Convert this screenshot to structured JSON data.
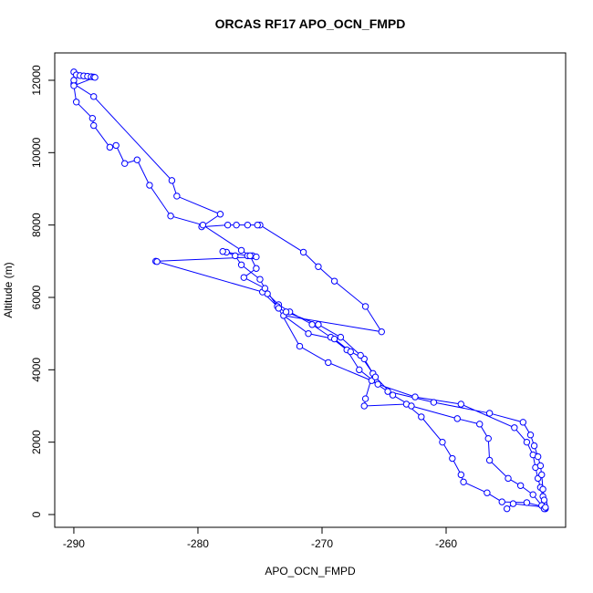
{
  "chart_data": {
    "type": "line",
    "title": "ORCAS RF17 APO_OCN_FMPD",
    "x_label": "APO_OCN_FMPD",
    "y_label": "Altitude (m)",
    "xlim": [
      -291.54,
      -250.37
    ],
    "ylim": [
      -353,
      12756
    ],
    "xticks": [
      -290,
      -280,
      -270,
      -260
    ],
    "yticks": [
      0,
      2000,
      4000,
      6000,
      8000,
      10000,
      12000
    ],
    "grid": false,
    "x": [
      -252.0,
      -252.1,
      -252.2,
      -252.4,
      -252.6,
      -252.8,
      -253.0,
      -253.5,
      -254.5,
      -258.8,
      -262.5,
      -265.5,
      -267.0,
      -268.0,
      -269.3,
      -270.8,
      -272.6,
      -273.5,
      -274.4,
      -275.0,
      -276.5,
      -277.0,
      -277.7,
      -278.0,
      -276.0,
      -275.6,
      -275.3,
      -283.4,
      -283.3,
      -274.8,
      -273.6,
      -271.8,
      -269.5,
      -266.0,
      -264.7,
      -261.0,
      -256.5,
      -253.8,
      -253.2,
      -252.9,
      -252.6,
      -252.4,
      -252.3,
      -252.2,
      -252.1,
      -252.0,
      -253.5,
      -255.5,
      -256.7,
      -258.6,
      -258.8,
      -259.5,
      -260.3,
      -262.0,
      -263.2,
      -266.6,
      -266.5,
      -265.9,
      -266.6,
      -267.7,
      -269.0,
      -271.1,
      -273.1,
      -265.2,
      -266.5,
      -269.0,
      -270.3,
      -271.5,
      -275.0,
      -275.2,
      -276.0,
      -276.9,
      -277.6,
      -279.7,
      -278.2,
      -281.7,
      -282.1,
      -288.4,
      -290.0,
      -290.0,
      -290.0,
      -289.8,
      -289.5,
      -289.2,
      -288.9,
      -288.6,
      -288.4,
      -288.3,
      -290.0,
      -289.8,
      -288.5,
      -288.4,
      -287.1,
      -286.6,
      -285.9,
      -284.9,
      -283.9,
      -282.2,
      -279.6,
      -276.5,
      -275.8,
      -275.3,
      -276.3,
      -274.6,
      -273.5,
      -272.9,
      -270.3,
      -268.5,
      -266.9,
      -265.7,
      -264.3,
      -262.8,
      -259.1,
      -257.3,
      -256.6,
      -256.5,
      -255.0,
      -254.0,
      -253.0,
      -252.3,
      -252.1,
      -252.0,
      -254.6,
      -255.1
    ],
    "series": [
      {
        "color": "#0000ff",
        "values": [
          160,
          300,
          500,
          750,
          1000,
          1300,
          1650,
          2000,
          2400,
          3050,
          3250,
          3600,
          4000,
          4550,
          4900,
          5250,
          5600,
          5800,
          6100,
          6500,
          6900,
          7150,
          7250,
          7270,
          7150,
          7150,
          7120,
          7000,
          6990,
          6150,
          5750,
          4650,
          4200,
          3700,
          3400,
          3100,
          2800,
          2550,
          2200,
          1900,
          1600,
          1350,
          1100,
          700,
          400,
          200,
          330,
          350,
          600,
          900,
          1100,
          1550,
          2000,
          2700,
          3050,
          3000,
          3200,
          3900,
          4300,
          4500,
          4850,
          5000,
          5500,
          5050,
          5750,
          6450,
          6850,
          7250,
          8000,
          8000,
          8000,
          8000,
          8000,
          7950,
          8300,
          8800,
          9230,
          11550,
          11900,
          12000,
          12230,
          12150,
          12130,
          12120,
          12110,
          12100,
          12090,
          12080,
          11850,
          11400,
          10950,
          10750,
          10150,
          10200,
          9700,
          9800,
          9100,
          8250,
          8000,
          7300,
          7150,
          6800,
          6550,
          6250,
          5700,
          5600,
          5250,
          4900,
          4400,
          3800,
          3300,
          3000,
          2650,
          2500,
          2100,
          1500,
          1000,
          800,
          550,
          250,
          160,
          200,
          300,
          160
        ]
      }
    ]
  }
}
